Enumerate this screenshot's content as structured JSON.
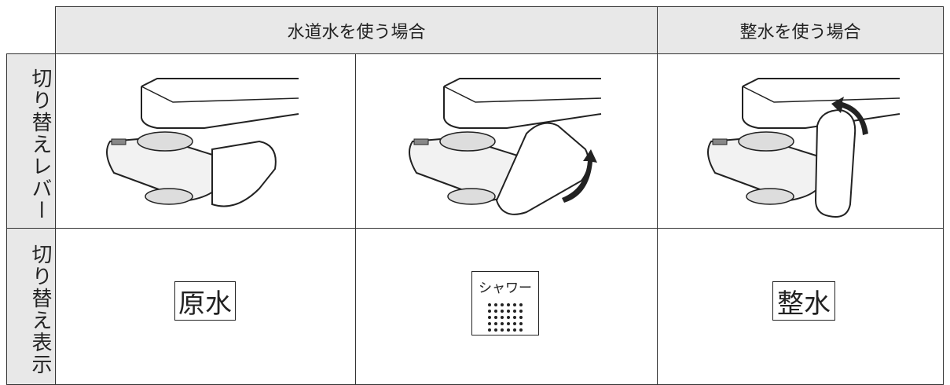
{
  "header": {
    "columns": [
      "水道水を使う場合",
      "整水を使う場合"
    ]
  },
  "rows": [
    {
      "label": "切り替えレバー"
    },
    {
      "label": "切り替え表示",
      "cells": [
        "原水",
        "シャワー",
        "整水"
      ]
    }
  ]
}
